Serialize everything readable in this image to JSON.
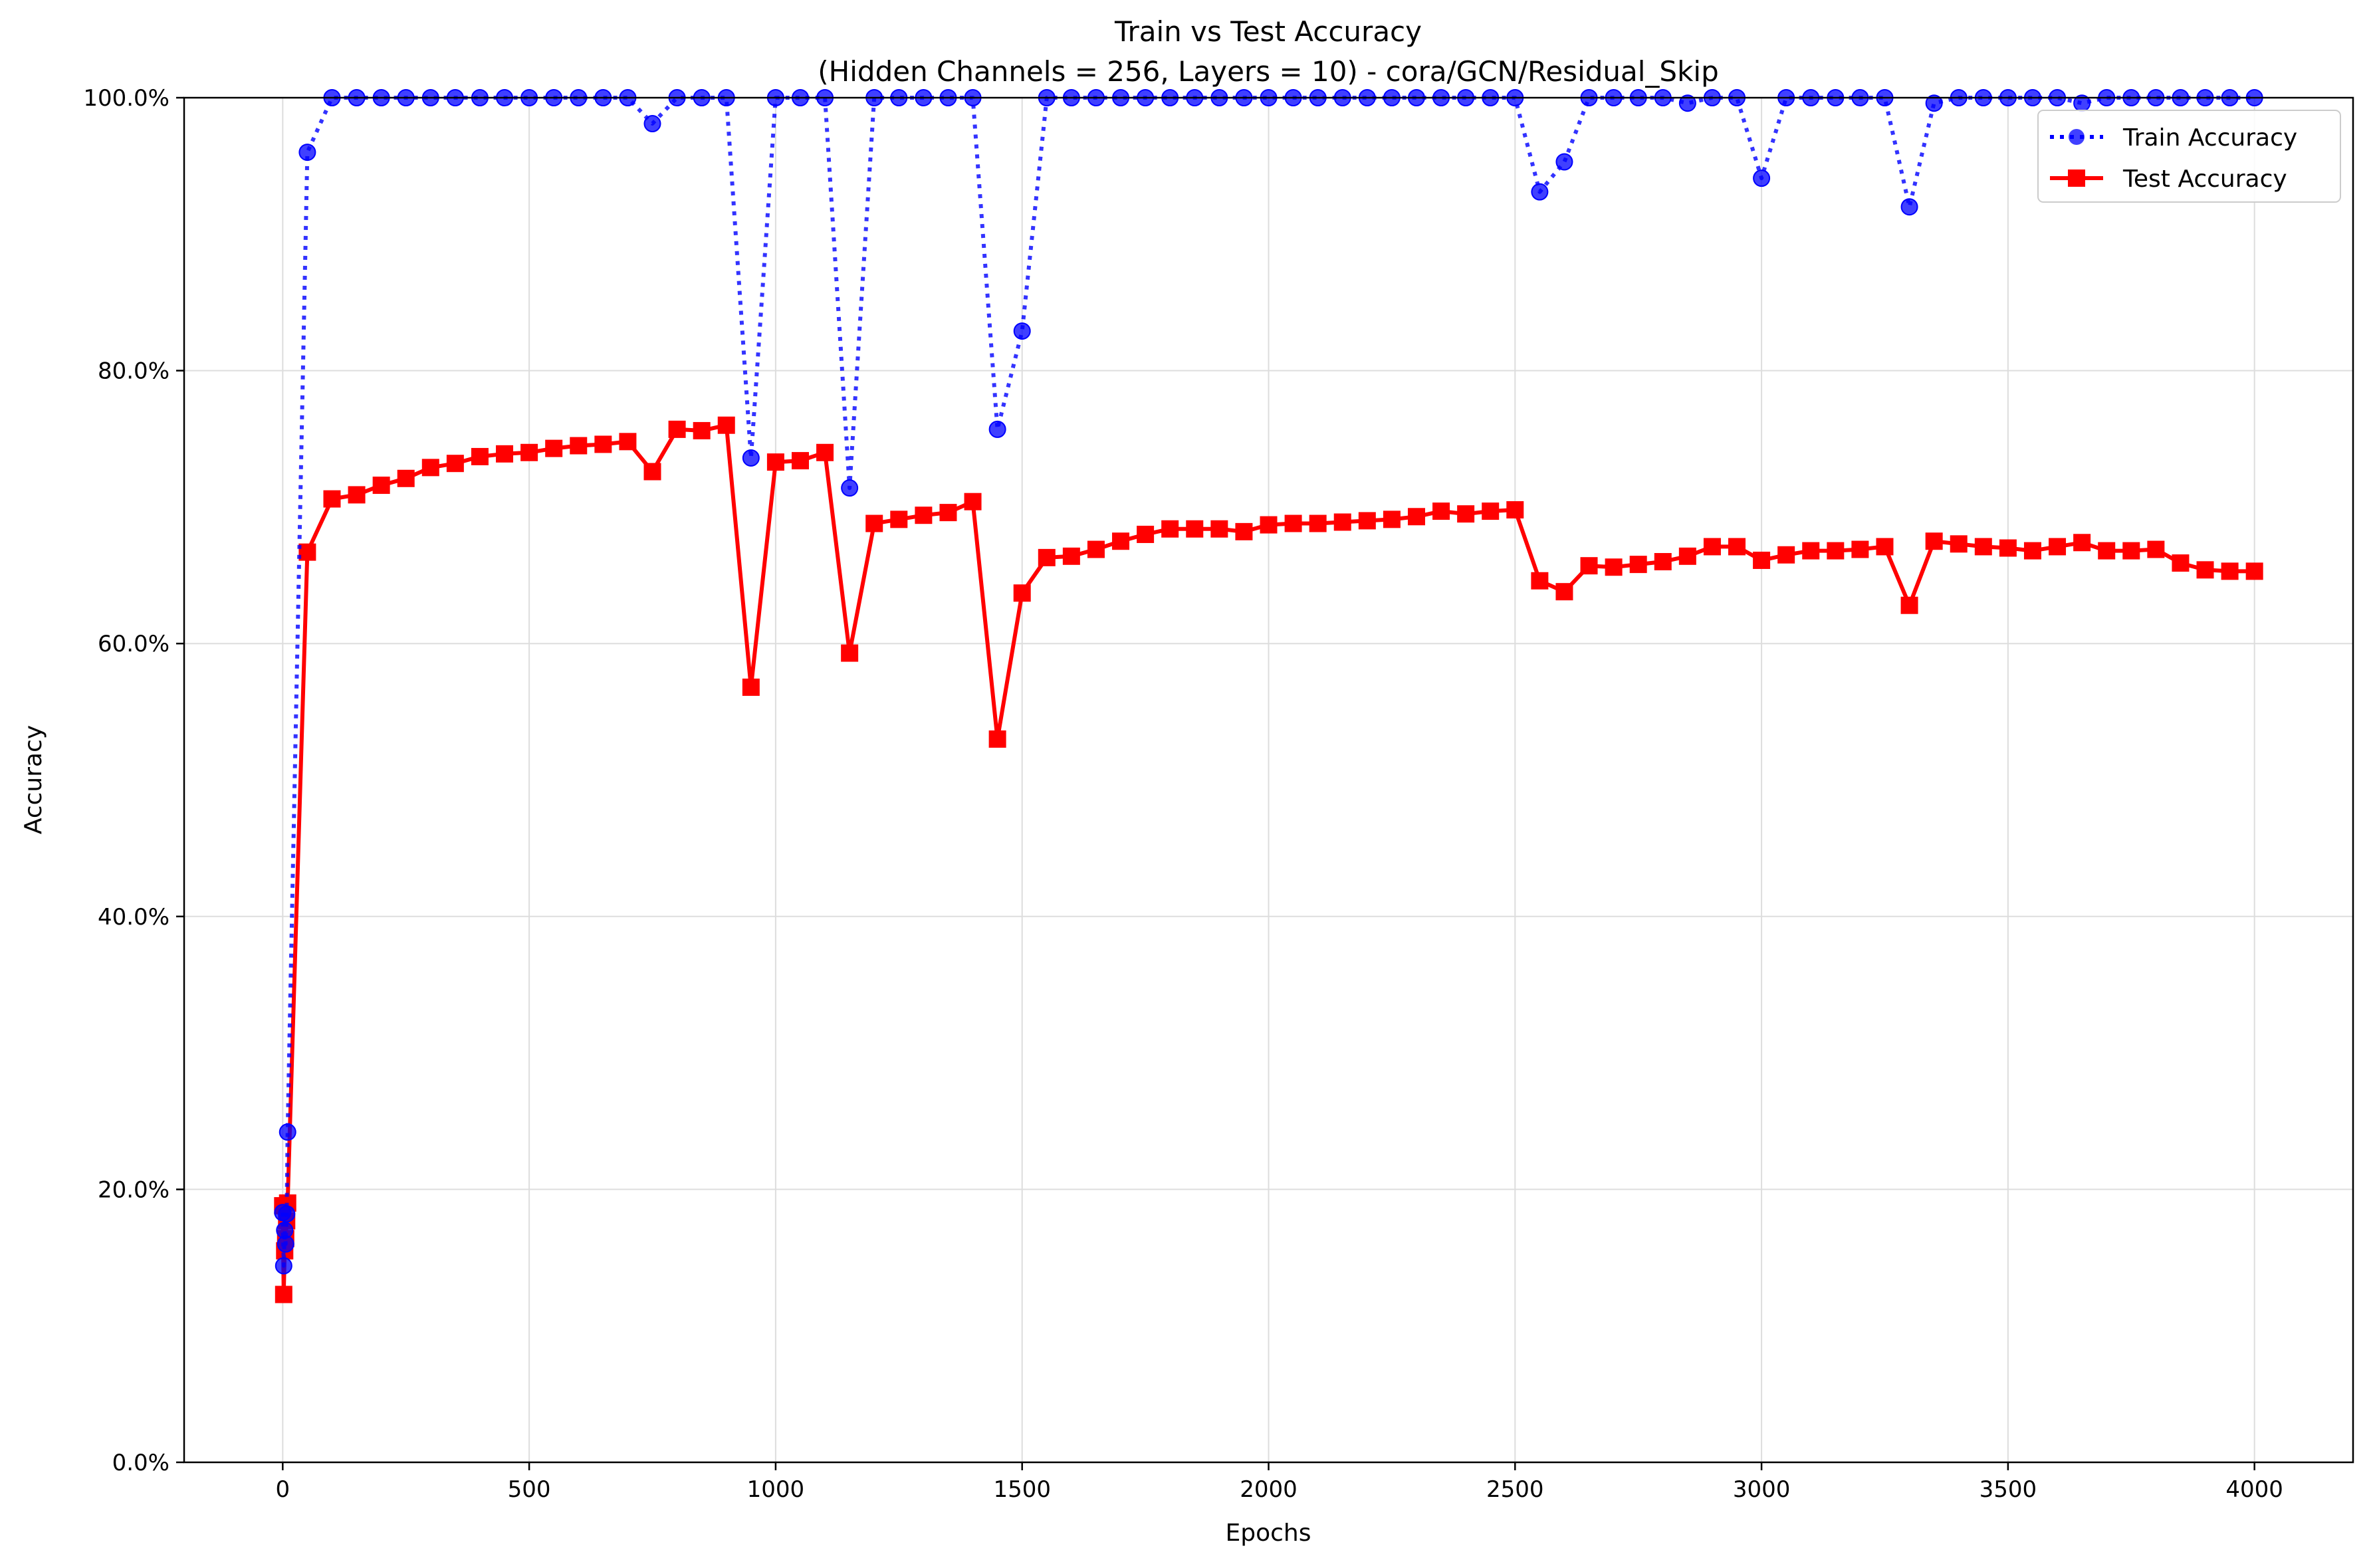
{
  "chart_data": {
    "type": "line",
    "title": "Train vs Test Accuracy",
    "subtitle": "(Hidden Channels = 256, Layers = 10) - cora/GCN/Residual_Skip",
    "xlabel": "Epochs",
    "ylabel": "Accuracy",
    "xlim": [
      -200,
      4200
    ],
    "ylim": [
      0,
      100
    ],
    "x_ticks": [
      0,
      500,
      1000,
      1500,
      2000,
      2500,
      3000,
      3500,
      4000
    ],
    "y_ticks": [
      0,
      20,
      40,
      60,
      80,
      100
    ],
    "x_tick_labels": [
      "0",
      "500",
      "1000",
      "1500",
      "2000",
      "2500",
      "3000",
      "3500",
      "4000"
    ],
    "y_tick_labels": [
      "0.0%",
      "20.0%",
      "40.0%",
      "60.0%",
      "80.0%",
      "100.0%"
    ],
    "grid": true,
    "legend_position": "top-right",
    "series": [
      {
        "name": "Train Accuracy",
        "color": "#0000ff",
        "style": "dotted",
        "marker": "circle",
        "points": [
          [
            0,
            18.3
          ],
          [
            2,
            14.4
          ],
          [
            4,
            17.0
          ],
          [
            6,
            16.0
          ],
          [
            8,
            18.2
          ],
          [
            10,
            24.2
          ],
          [
            50,
            96.0
          ],
          [
            100,
            100
          ],
          [
            150,
            100
          ],
          [
            200,
            100
          ],
          [
            250,
            100
          ],
          [
            300,
            100
          ],
          [
            350,
            100
          ],
          [
            400,
            100
          ],
          [
            450,
            100
          ],
          [
            500,
            100
          ],
          [
            550,
            100
          ],
          [
            600,
            100
          ],
          [
            650,
            100
          ],
          [
            700,
            100
          ],
          [
            750,
            98.1
          ],
          [
            800,
            100
          ],
          [
            850,
            100
          ],
          [
            900,
            100
          ],
          [
            950,
            73.6
          ],
          [
            1000,
            100
          ],
          [
            1050,
            100
          ],
          [
            1100,
            100
          ],
          [
            1150,
            71.4
          ],
          [
            1200,
            100
          ],
          [
            1250,
            100
          ],
          [
            1300,
            100
          ],
          [
            1350,
            100
          ],
          [
            1400,
            100
          ],
          [
            1450,
            75.7
          ],
          [
            1500,
            82.9
          ],
          [
            1550,
            100
          ],
          [
            1600,
            100
          ],
          [
            1650,
            100
          ],
          [
            1700,
            100
          ],
          [
            1750,
            100
          ],
          [
            1800,
            100
          ],
          [
            1850,
            100
          ],
          [
            1900,
            100
          ],
          [
            1950,
            100
          ],
          [
            2000,
            100
          ],
          [
            2050,
            100
          ],
          [
            2100,
            100
          ],
          [
            2150,
            100
          ],
          [
            2200,
            100
          ],
          [
            2250,
            100
          ],
          [
            2300,
            100
          ],
          [
            2350,
            100
          ],
          [
            2400,
            100
          ],
          [
            2450,
            100
          ],
          [
            2500,
            100
          ],
          [
            2550,
            93.1
          ],
          [
            2600,
            95.3
          ],
          [
            2650,
            100
          ],
          [
            2700,
            100
          ],
          [
            2750,
            100
          ],
          [
            2800,
            100
          ],
          [
            2850,
            99.6
          ],
          [
            2900,
            100
          ],
          [
            2950,
            100
          ],
          [
            3000,
            94.1
          ],
          [
            3050,
            100
          ],
          [
            3100,
            100
          ],
          [
            3150,
            100
          ],
          [
            3200,
            100
          ],
          [
            3250,
            100
          ],
          [
            3300,
            92.0
          ],
          [
            3350,
            99.6
          ],
          [
            3400,
            100
          ],
          [
            3450,
            100
          ],
          [
            3500,
            100
          ],
          [
            3550,
            100
          ],
          [
            3600,
            100
          ],
          [
            3650,
            99.6
          ],
          [
            3700,
            100
          ],
          [
            3750,
            100
          ],
          [
            3800,
            100
          ],
          [
            3850,
            100
          ],
          [
            3900,
            100
          ],
          [
            3950,
            100
          ],
          [
            4000,
            100
          ]
        ]
      },
      {
        "name": "Test Accuracy",
        "color": "#ff0000",
        "style": "solid",
        "marker": "square",
        "points": [
          [
            0,
            18.8
          ],
          [
            2,
            12.3
          ],
          [
            4,
            15.5
          ],
          [
            6,
            16.4
          ],
          [
            8,
            17.7
          ],
          [
            10,
            19.0
          ],
          [
            50,
            66.7
          ],
          [
            100,
            70.6
          ],
          [
            150,
            70.9
          ],
          [
            200,
            71.6
          ],
          [
            250,
            72.1
          ],
          [
            300,
            72.9
          ],
          [
            350,
            73.2
          ],
          [
            400,
            73.7
          ],
          [
            450,
            73.9
          ],
          [
            500,
            74.0
          ],
          [
            550,
            74.3
          ],
          [
            600,
            74.5
          ],
          [
            650,
            74.6
          ],
          [
            700,
            74.8
          ],
          [
            750,
            72.6
          ],
          [
            800,
            75.7
          ],
          [
            850,
            75.6
          ],
          [
            900,
            76.0
          ],
          [
            950,
            56.8
          ],
          [
            1000,
            73.3
          ],
          [
            1050,
            73.4
          ],
          [
            1100,
            74.0
          ],
          [
            1150,
            59.3
          ],
          [
            1200,
            68.8
          ],
          [
            1250,
            69.1
          ],
          [
            1300,
            69.4
          ],
          [
            1350,
            69.6
          ],
          [
            1400,
            70.4
          ],
          [
            1450,
            53.0
          ],
          [
            1500,
            63.7
          ],
          [
            1550,
            66.3
          ],
          [
            1600,
            66.4
          ],
          [
            1650,
            66.9
          ],
          [
            1700,
            67.5
          ],
          [
            1750,
            68.0
          ],
          [
            1800,
            68.4
          ],
          [
            1850,
            68.4
          ],
          [
            1900,
            68.4
          ],
          [
            1950,
            68.2
          ],
          [
            2000,
            68.7
          ],
          [
            2050,
            68.8
          ],
          [
            2100,
            68.8
          ],
          [
            2150,
            68.9
          ],
          [
            2200,
            69.0
          ],
          [
            2250,
            69.1
          ],
          [
            2300,
            69.3
          ],
          [
            2350,
            69.7
          ],
          [
            2400,
            69.5
          ],
          [
            2450,
            69.7
          ],
          [
            2500,
            69.8
          ],
          [
            2550,
            64.6
          ],
          [
            2600,
            63.8
          ],
          [
            2650,
            65.7
          ],
          [
            2700,
            65.6
          ],
          [
            2750,
            65.8
          ],
          [
            2800,
            66.0
          ],
          [
            2850,
            66.4
          ],
          [
            2900,
            67.1
          ],
          [
            2950,
            67.1
          ],
          [
            3000,
            66.1
          ],
          [
            3050,
            66.5
          ],
          [
            3100,
            66.8
          ],
          [
            3150,
            66.8
          ],
          [
            3200,
            66.9
          ],
          [
            3250,
            67.1
          ],
          [
            3300,
            62.8
          ],
          [
            3350,
            67.5
          ],
          [
            3400,
            67.3
          ],
          [
            3450,
            67.1
          ],
          [
            3500,
            67.0
          ],
          [
            3550,
            66.8
          ],
          [
            3600,
            67.1
          ],
          [
            3650,
            67.4
          ],
          [
            3700,
            66.8
          ],
          [
            3750,
            66.8
          ],
          [
            3800,
            66.9
          ],
          [
            3850,
            65.9
          ],
          [
            3900,
            65.4
          ],
          [
            3950,
            65.3
          ],
          [
            4000,
            65.3
          ]
        ]
      }
    ]
  }
}
